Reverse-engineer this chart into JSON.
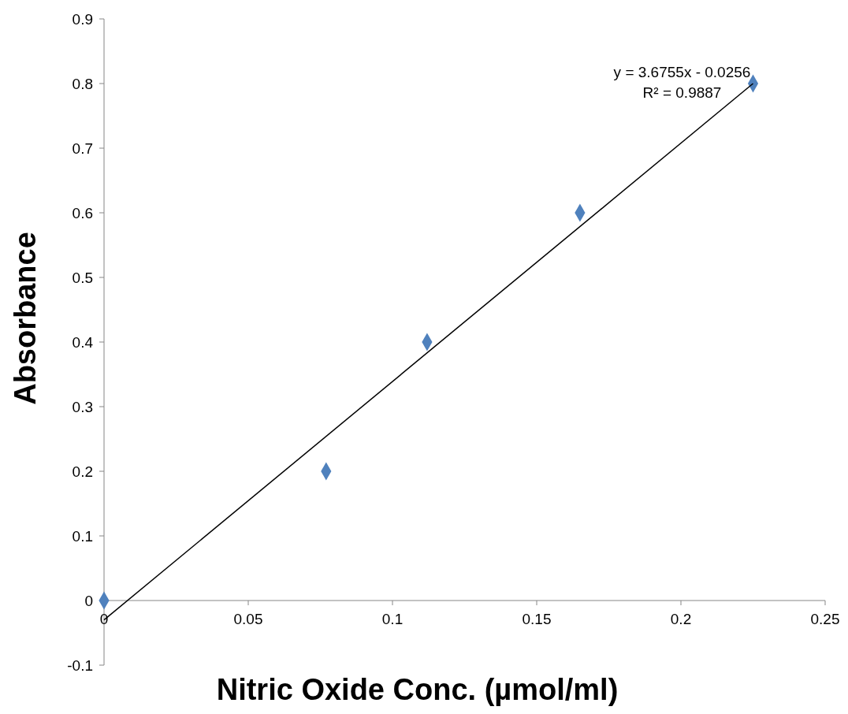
{
  "chart_data": {
    "type": "scatter",
    "xlabel": "Nitric Oxide Conc. (µmol/ml)",
    "ylabel": "Absorbance",
    "x": [
      0,
      0.077,
      0.112,
      0.165,
      0.225
    ],
    "series": [
      {
        "color": "#4f81bd",
        "marker": "diamond",
        "values": [
          0,
          0.2,
          0.4,
          0.6,
          0.8
        ]
      },
      {
        "type": "line",
        "color": "#000000",
        "x": [
          0,
          0.225
        ],
        "values": [
          -0.03,
          0.8
        ],
        "marker": "none",
        "line_style": "solid"
      }
    ],
    "xlim": [
      0,
      0.25
    ],
    "xticks": [
      0,
      0.05,
      0.1,
      0.15,
      0.2,
      0.25
    ],
    "ylim": [
      -0.1,
      0.9
    ],
    "yticks": [
      -0.1,
      0,
      0.1,
      0.2,
      0.3,
      0.4,
      0.5,
      0.6,
      0.7,
      0.8,
      0.9
    ],
    "grid": false,
    "annotations": [
      {
        "text": "y = 3.6755x - 0.0256",
        "x": 0.225,
        "y": 0.8
      },
      {
        "text": "R² = 0.9887",
        "x": 0.225,
        "y": 0.8
      }
    ]
  }
}
